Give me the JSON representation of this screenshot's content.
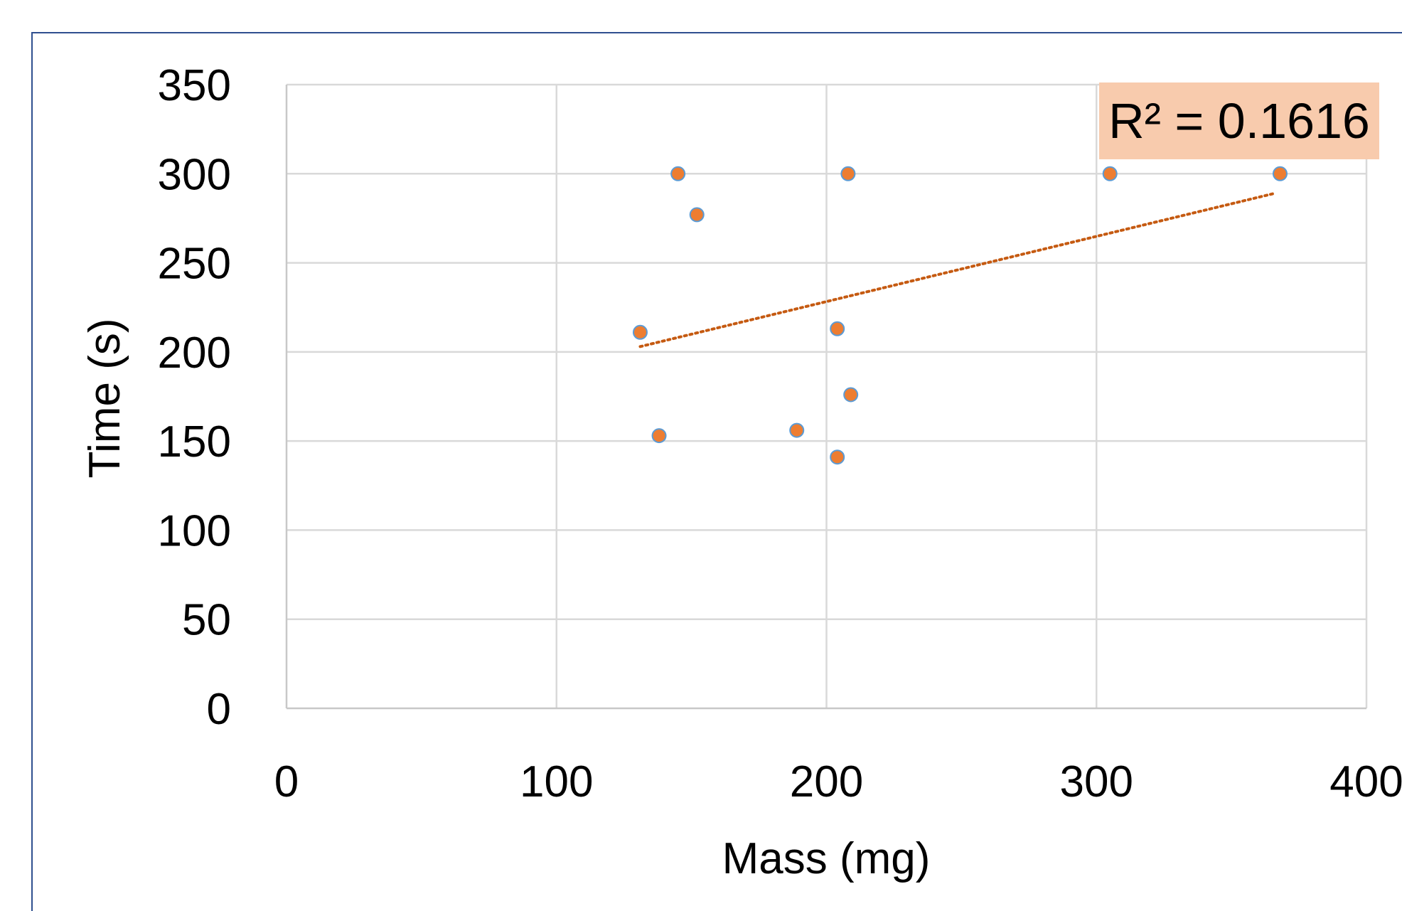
{
  "chart_data": {
    "type": "scatter",
    "title": "",
    "xlabel": "Mass (mg)",
    "ylabel": "Time (s)",
    "xlim": [
      0,
      400
    ],
    "ylim": [
      0,
      350
    ],
    "xticks": [
      "0",
      "100",
      "200",
      "300",
      "400"
    ],
    "yticks": [
      "0",
      "50",
      "100",
      "150",
      "200",
      "250",
      "300",
      "350"
    ],
    "grid": true,
    "legend": "none",
    "series": [
      {
        "color": "#ed7d31",
        "marker_edge_color": "#5b9bd5",
        "x": [
          145,
          208,
          305,
          368,
          152,
          131,
          204,
          209,
          138,
          189,
          204
        ],
        "y": [
          300,
          300,
          300,
          300,
          277,
          211,
          213,
          176,
          153,
          156,
          141
        ]
      }
    ],
    "trendline": {
      "type": "linear",
      "color": "#c55a11",
      "style": "dotted",
      "x_range": [
        131,
        366
      ],
      "y_range": [
        203,
        289
      ]
    },
    "annotations": [
      {
        "text": "R² = 0.1616",
        "background": "#f8cbad"
      }
    ]
  }
}
